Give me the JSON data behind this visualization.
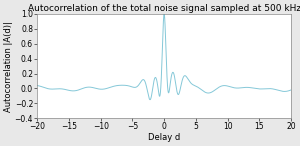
{
  "title": "Autocorrelation of the total noise signal sampled at 500 kHz",
  "xlabel": "Delay d",
  "ylabel": "Autocorrelation |A(d)|",
  "xlim": [
    -20,
    20
  ],
  "ylim": [
    -0.4,
    1.0
  ],
  "yticks": [
    -0.4,
    -0.2,
    0.0,
    0.2,
    0.4,
    0.6,
    0.8,
    1.0
  ],
  "xticks": [
    -20,
    -15,
    -10,
    -5,
    0,
    5,
    10,
    15,
    20
  ],
  "line_color": "#85c8d8",
  "bg_color": "#ffffff",
  "fig_bg_color": "#e8e8e8",
  "title_fontsize": 6.5,
  "label_fontsize": 6.0,
  "tick_fontsize": 5.5
}
